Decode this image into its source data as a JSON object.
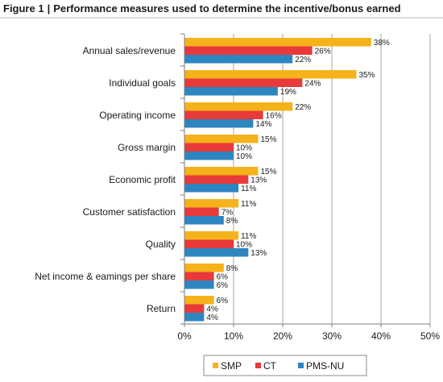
{
  "figure_number": "Figure 1",
  "figure_title": "Performance measures used to determine the incentive/bonus earned",
  "chart_data": {
    "type": "bar",
    "orientation": "horizontal",
    "categories": [
      "Annual sales/revenue",
      "Individual goals",
      "Operating income",
      "Gross margin",
      "Economic profit",
      "Customer satisfaction",
      "Quality",
      "Net income & eamings per share",
      "Return"
    ],
    "series": [
      {
        "name": "SMP",
        "color": "#F5B21B",
        "values": [
          38,
          35,
          22,
          15,
          15,
          11,
          11,
          8,
          6
        ],
        "labels": [
          "38%",
          "35%",
          "22%",
          "15%",
          "15%",
          "11%",
          "11%",
          "8%",
          "6%"
        ]
      },
      {
        "name": "CT",
        "color": "#E8393B",
        "values": [
          26,
          24,
          16,
          10,
          13,
          7,
          10,
          6,
          4
        ],
        "labels": [
          "26%",
          "24%",
          "16%",
          "10%",
          "13%",
          "7%",
          "10%",
          "6%",
          "4%"
        ]
      },
      {
        "name": "PMS-NU",
        "color": "#2E86C1",
        "values": [
          22,
          19,
          14,
          10,
          11,
          8,
          13,
          6,
          4
        ],
        "labels": [
          "22%",
          "19%",
          "14%",
          "10%",
          "11%",
          "8%",
          "13%",
          "6%",
          "4%"
        ]
      }
    ],
    "xlim": [
      0,
      50
    ],
    "xticks": [
      0,
      10,
      20,
      30,
      40,
      50
    ],
    "xtick_labels": [
      "0%",
      "10%",
      "20%",
      "30%",
      "40%",
      "50%"
    ],
    "grid": "vertical",
    "legend_position": "bottom"
  }
}
